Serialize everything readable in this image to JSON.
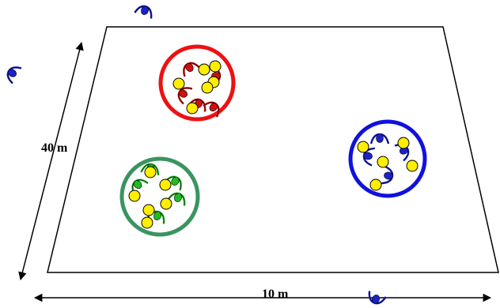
{
  "labels": {
    "side_length": "40 m",
    "bottom_length": "10 m"
  },
  "colors": {
    "field_outline": "#000000",
    "group_red": "#ee1111",
    "group_blue": "#1111dd",
    "group_green": "#3a9460",
    "ball_fill": "#ffee00",
    "player_red": "#cc1111",
    "player_blue": "#1a22cc",
    "player_green": "#22bb22",
    "outside_player": "#1a22cc"
  },
  "groups": [
    {
      "name": "red-group",
      "color_key": "group_red",
      "player_key": "player_red",
      "balls": 6,
      "players": 5
    },
    {
      "name": "blue-group",
      "color_key": "group_blue",
      "player_key": "player_blue",
      "balls": 5,
      "players": 4
    },
    {
      "name": "green-group",
      "color_key": "group_green",
      "player_key": "player_green",
      "balls": 6,
      "players": 5
    }
  ],
  "outside_players": 3
}
